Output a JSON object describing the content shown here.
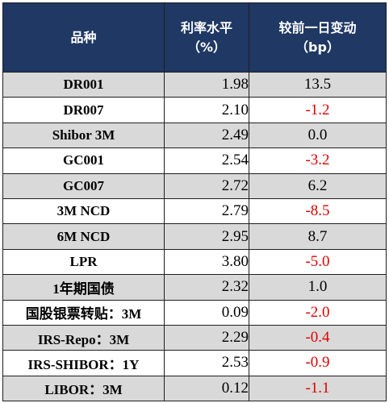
{
  "table": {
    "headers": {
      "variety": "品种",
      "rate_line1": "利率水平",
      "rate_line2": "（%）",
      "change_line1": "较前一日变动",
      "change_line2": "（bp）"
    },
    "rows": [
      {
        "name": "DR001",
        "rate": "1.98",
        "change": "13.5"
      },
      {
        "name": "DR007",
        "rate": "2.10",
        "change": "-1.2"
      },
      {
        "name": "Shibor 3M",
        "rate": "2.49",
        "change": "0.0"
      },
      {
        "name": "GC001",
        "rate": "2.54",
        "change": "-3.2"
      },
      {
        "name": "GC007",
        "rate": "2.72",
        "change": "6.2"
      },
      {
        "name": "3M NCD",
        "rate": "2.79",
        "change": "-8.5"
      },
      {
        "name": "6M NCD",
        "rate": "2.95",
        "change": "8.7"
      },
      {
        "name": "LPR",
        "rate": "3.80",
        "change": "-5.0"
      },
      {
        "name": "1年期国债",
        "rate": "2.32",
        "change": "1.0"
      },
      {
        "name": "国股银票转贴：3M",
        "rate": "0.09",
        "change": "-2.0"
      },
      {
        "name": "IRS-Repo：3M",
        "rate": "2.29",
        "change": "-0.4"
      },
      {
        "name": "IRS-SHIBOR：1Y",
        "rate": "2.53",
        "change": "-0.9"
      },
      {
        "name": "LIBOR：3M",
        "rate": "0.12",
        "change": "-1.1"
      }
    ]
  },
  "colors": {
    "header_bg": "#1f3864",
    "header_text": "#ffffff",
    "alt_row_bg": "#d9d9d9",
    "negative_text": "#e00000"
  }
}
